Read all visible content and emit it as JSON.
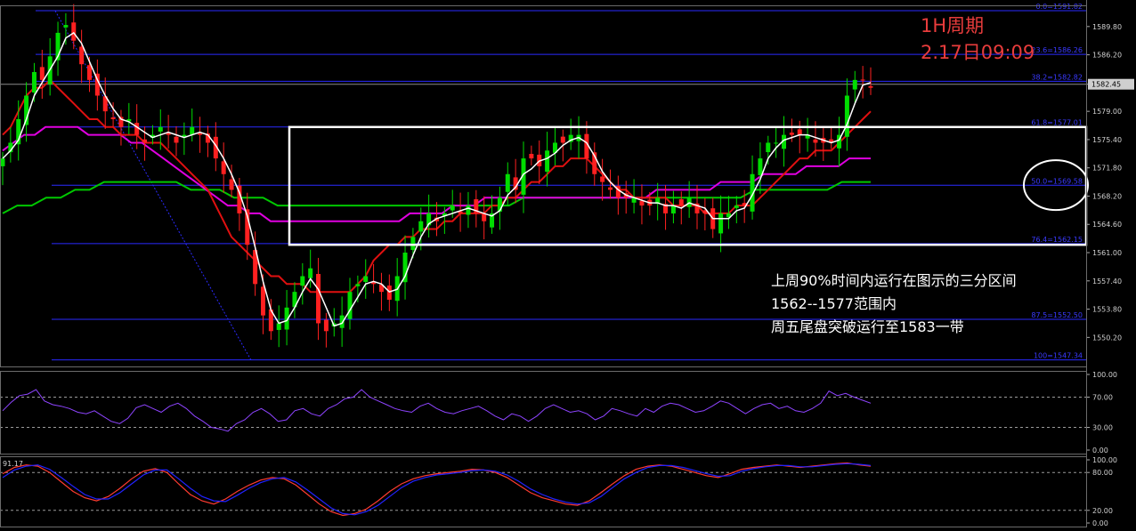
{
  "chart_data": [
    {
      "type": "candlestick",
      "title": "1H周期",
      "subtitle": "2.17日09:09",
      "ylim": [
        1546.5,
        1592.5
      ],
      "y_ticks": [
        "1589.80",
        "1586.20",
        "1582.45",
        "1579.00",
        "1575.40",
        "1571.80",
        "1568.20",
        "1564.60",
        "1561.00",
        "1557.40",
        "1553.80",
        "1550.20"
      ],
      "current_price": "1582.45",
      "fib_levels": [
        {
          "label": "0.0=1591.82",
          "value": 1591.82
        },
        {
          "label": "23.6=1586.26",
          "value": 1586.26
        },
        {
          "label": "38.2=1582.82",
          "value": 1582.82
        },
        {
          "label": "61.8=1577.01",
          "value": 1577.01
        },
        {
          "label": "50.0=1569.58",
          "value": 1569.58
        },
        {
          "label": "76.4=1562.15",
          "value": 1562.15
        },
        {
          "label": "87.5=1552.50",
          "value": 1552.5
        },
        {
          "label": "100=1547.34",
          "value": 1547.34
        }
      ],
      "range_box": {
        "low": 1562,
        "high": 1577
      },
      "close_series": [
        1573,
        1575,
        1578,
        1581,
        1584,
        1583,
        1586,
        1589,
        1590,
        1588,
        1585,
        1583,
        1581,
        1579,
        1578,
        1577,
        1578,
        1576,
        1575,
        1576,
        1577,
        1576,
        1575,
        1576,
        1577,
        1576,
        1575,
        1573,
        1571,
        1569,
        1566,
        1562,
        1557,
        1553,
        1551,
        1552,
        1554,
        1556,
        1558,
        1559,
        1552,
        1551,
        1552,
        1553,
        1556,
        1557,
        1558,
        1557,
        1556,
        1555,
        1558,
        1561,
        1563,
        1565,
        1566,
        1565,
        1566,
        1567,
        1566,
        1567,
        1566,
        1565,
        1566,
        1568,
        1571,
        1569,
        1573,
        1573,
        1572,
        1574,
        1575,
        1575,
        1576,
        1576,
        1573,
        1571,
        1570,
        1569,
        1568,
        1568,
        1568,
        1567,
        1567,
        1568,
        1566,
        1567,
        1567,
        1568,
        1566,
        1566,
        1564,
        1566,
        1566,
        1567,
        1567,
        1571,
        1573,
        1575,
        1575,
        1576,
        1576,
        1576,
        1576,
        1575,
        1575,
        1575,
        1576,
        1581,
        1583,
        1583,
        1582
      ],
      "ma_fast": [
        1576,
        1577,
        1579,
        1581,
        1582,
        1582,
        1583,
        1582,
        1581,
        1580,
        1579,
        1578,
        1578,
        1577,
        1577,
        1576,
        1576,
        1576,
        1575,
        1575,
        1575,
        1574,
        1573,
        1572,
        1571,
        1570,
        1569,
        1567,
        1565,
        1563,
        1562,
        1561,
        1560,
        1559,
        1558,
        1558,
        1557,
        1557,
        1557,
        1556,
        1556,
        1556,
        1556,
        1556,
        1556,
        1557,
        1558,
        1560,
        1561,
        1562,
        1562,
        1563,
        1563,
        1564,
        1564,
        1564,
        1565,
        1565,
        1566,
        1566,
        1566,
        1566,
        1567,
        1567,
        1568,
        1568,
        1569,
        1570,
        1570,
        1571,
        1572,
        1572,
        1573,
        1573,
        1573,
        1572,
        1571,
        1570,
        1569,
        1569,
        1568,
        1568,
        1568,
        1568,
        1568,
        1567,
        1567,
        1567,
        1567,
        1566,
        1566,
        1566,
        1566,
        1567,
        1567,
        1567,
        1568,
        1569,
        1570,
        1571,
        1572,
        1573,
        1573,
        1574,
        1574,
        1574,
        1575,
        1576,
        1577,
        1578,
        1579
      ],
      "ma_mid": [
        1574,
        1575,
        1576,
        1576,
        1577,
        1577,
        1577,
        1577,
        1576,
        1576,
        1576,
        1576,
        1575,
        1575,
        1574,
        1573,
        1572,
        1571,
        1570,
        1569,
        1568,
        1567,
        1567,
        1566,
        1566,
        1565,
        1565,
        1565,
        1565,
        1565,
        1565,
        1565,
        1565,
        1565,
        1565,
        1565,
        1565,
        1565,
        1566,
        1566,
        1566,
        1566,
        1567,
        1567,
        1567,
        1568,
        1568,
        1568,
        1568,
        1568,
        1568,
        1568,
        1568,
        1568,
        1568,
        1568,
        1568,
        1568,
        1568,
        1568,
        1568,
        1569,
        1569,
        1569,
        1569,
        1569,
        1569,
        1570,
        1570,
        1570,
        1570,
        1571,
        1571,
        1571,
        1571,
        1572,
        1572,
        1572,
        1572,
        1573,
        1573,
        1573
      ],
      "ma_slow": [
        1566,
        1567,
        1567,
        1568,
        1568,
        1569,
        1569,
        1570,
        1570,
        1570,
        1570,
        1570,
        1570,
        1569,
        1569,
        1569,
        1568,
        1568,
        1568,
        1567,
        1567,
        1567,
        1567,
        1567,
        1567,
        1567,
        1567,
        1567,
        1567,
        1567,
        1567,
        1567,
        1567,
        1567,
        1567,
        1567,
        1568,
        1568,
        1568,
        1568,
        1568,
        1568,
        1568,
        1568,
        1568,
        1568,
        1568,
        1568,
        1568,
        1568,
        1568,
        1568,
        1569,
        1569,
        1569,
        1569,
        1569,
        1569,
        1570,
        1570,
        1570
      ]
    },
    {
      "type": "line",
      "ylim": [
        0,
        100
      ],
      "y_ticks": [
        "100.00",
        "70.00",
        "30.00",
        "0.00"
      ],
      "levels": [
        70,
        30
      ],
      "values": [
        52,
        63,
        72,
        74,
        80,
        65,
        60,
        58,
        55,
        50,
        48,
        52,
        45,
        38,
        35,
        42,
        56,
        60,
        55,
        50,
        58,
        62,
        55,
        45,
        38,
        30,
        28,
        25,
        35,
        40,
        50,
        55,
        48,
        38,
        40,
        52,
        55,
        48,
        45,
        55,
        60,
        68,
        70,
        80,
        70,
        65,
        60,
        55,
        52,
        50,
        58,
        62,
        55,
        50,
        48,
        52,
        55,
        58,
        52,
        45,
        40,
        48,
        45,
        38,
        45,
        55,
        60,
        55,
        50,
        52,
        48,
        40,
        45,
        55,
        52,
        48,
        45,
        55,
        50,
        58,
        62,
        60,
        55,
        50,
        52,
        58,
        65,
        62,
        55,
        48,
        55,
        60,
        62,
        55,
        58,
        52,
        50,
        55,
        62,
        78,
        72,
        75,
        70,
        66,
        62
      ]
    },
    {
      "type": "line",
      "ylim": [
        0,
        100
      ],
      "y_ticks": [
        "100.00",
        "80.00",
        "20.00",
        "0.00"
      ],
      "levels": [
        80,
        20
      ],
      "readout": "91.17",
      "series": [
        {
          "color": "#ff3b30",
          "values": [
            78,
            88,
            92,
            90,
            80,
            65,
            50,
            40,
            35,
            42,
            55,
            70,
            82,
            86,
            80,
            62,
            45,
            35,
            30,
            38,
            50,
            60,
            68,
            72,
            70,
            60,
            45,
            30,
            18,
            12,
            15,
            22,
            35,
            50,
            62,
            70,
            75,
            78,
            80,
            82,
            85,
            84,
            80,
            72,
            60,
            48,
            40,
            35,
            30,
            28,
            35,
            48,
            62,
            75,
            85,
            90,
            92,
            90,
            85,
            80,
            75,
            72,
            78,
            85,
            88,
            90,
            92,
            90,
            88,
            90,
            92,
            94,
            95,
            92,
            90
          ]
        },
        {
          "color": "#2222ff",
          "values": [
            72,
            84,
            90,
            92,
            85,
            72,
            58,
            45,
            38,
            38,
            48,
            62,
            76,
            84,
            84,
            70,
            55,
            42,
            35,
            34,
            44,
            55,
            64,
            70,
            72,
            65,
            52,
            38,
            24,
            15,
            13,
            18,
            28,
            42,
            56,
            66,
            72,
            76,
            78,
            80,
            83,
            84,
            82,
            76,
            66,
            54,
            45,
            38,
            33,
            30,
            32,
            42,
            56,
            70,
            80,
            88,
            91,
            91,
            88,
            83,
            78,
            74,
            75,
            82,
            86,
            89,
            91,
            91,
            89,
            89,
            91,
            93,
            94,
            93,
            91
          ]
        }
      ]
    }
  ],
  "annotations": {
    "line1": "上周90%时间内运行在图示的三分区间",
    "line2": "1562--1577范围内",
    "line3": "周五尾盘突破运行至1583一带"
  },
  "colors": {
    "background": "#000000",
    "bull": "#00dd00",
    "bear": "#ff2020",
    "ma_fast": "#e01010",
    "ma_mid": "#e000e0",
    "ma_slow": "#00c800",
    "ma_short": "#ffffff",
    "rsi": "#8e44ff",
    "fib": "#2a2aff",
    "title": "#e83c3c"
  }
}
